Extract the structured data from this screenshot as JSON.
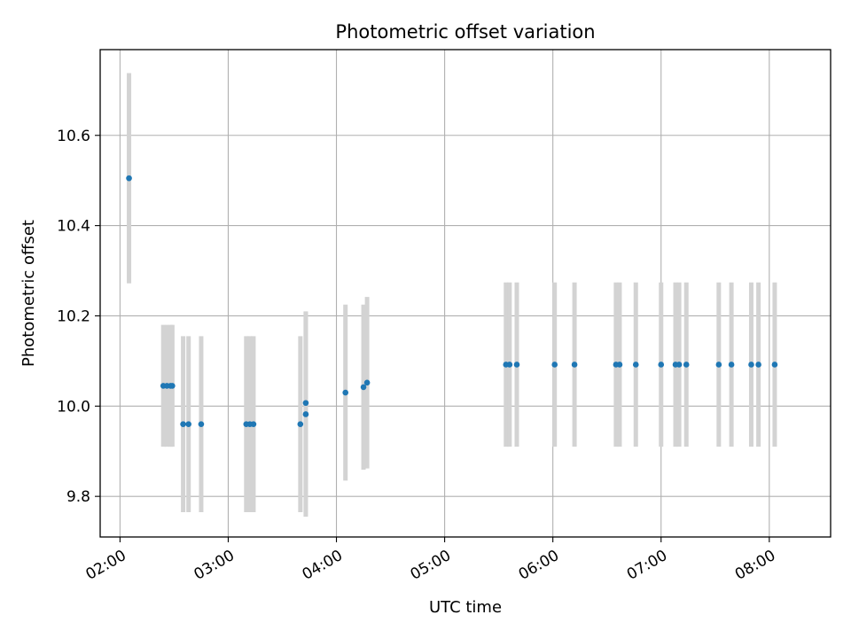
{
  "chart_data": {
    "type": "scatter",
    "title": "Photometric offset variation",
    "xlabel": "UTC time",
    "ylabel": "Photometric offset",
    "x_ticks": [
      "02:00",
      "03:00",
      "04:00",
      "05:00",
      "06:00",
      "07:00",
      "08:00"
    ],
    "y_ticks": [
      "9.8",
      "10.0",
      "10.2",
      "10.4",
      "10.6"
    ],
    "xlim": [
      "01:49",
      "08:34"
    ],
    "ylim": [
      9.71,
      10.79
    ],
    "grid": true,
    "errorbar_color": "#d3d3d3",
    "marker_color": "#1f77b4",
    "series": [
      {
        "x": [
          "02:05",
          "02:24",
          "02:26",
          "02:28",
          "02:29",
          "02:35",
          "02:38",
          "02:45",
          "03:10",
          "03:12",
          "03:14",
          "03:40",
          "03:43",
          "03:43",
          "04:05",
          "04:15",
          "04:17",
          "05:34",
          "05:36",
          "05:40",
          "06:01",
          "06:12",
          "06:35",
          "06:37",
          "06:46",
          "07:00",
          "07:08",
          "07:10",
          "07:14",
          "07:32",
          "07:39",
          "07:50",
          "07:54",
          "08:03"
        ],
        "y": [
          10.505,
          10.045,
          10.045,
          10.045,
          10.045,
          9.96,
          9.96,
          9.96,
          9.96,
          9.96,
          9.96,
          9.96,
          9.982,
          10.007,
          10.03,
          10.042,
          10.052,
          10.092,
          10.092,
          10.092,
          10.092,
          10.092,
          10.092,
          10.092,
          10.092,
          10.092,
          10.092,
          10.092,
          10.092,
          10.092,
          10.092,
          10.092,
          10.092,
          10.092
        ],
        "yerr": [
          0.233,
          0.135,
          0.135,
          0.135,
          0.135,
          0.195,
          0.195,
          0.195,
          0.195,
          0.195,
          0.195,
          0.195,
          0.227,
          0.203,
          0.195,
          0.183,
          0.19,
          0.182,
          0.182,
          0.182,
          0.182,
          0.182,
          0.182,
          0.182,
          0.182,
          0.182,
          0.182,
          0.182,
          0.182,
          0.182,
          0.182,
          0.182,
          0.182,
          0.182
        ]
      }
    ]
  }
}
